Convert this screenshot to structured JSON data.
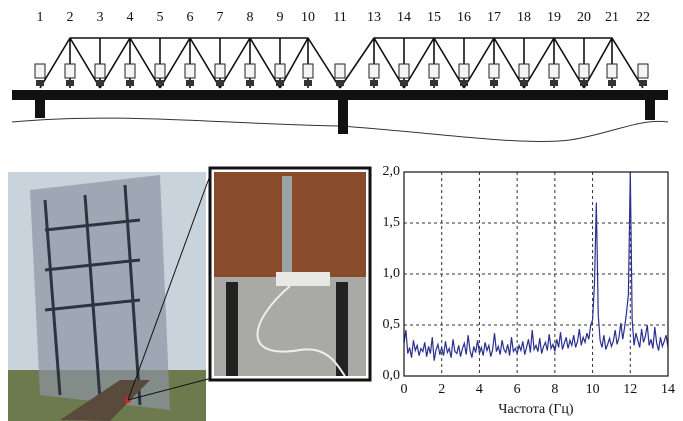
{
  "diagram": {
    "labels": [
      "1",
      "2",
      "3",
      "4",
      "5",
      "6",
      "7",
      "8",
      "9",
      "10",
      "11",
      "13",
      "14",
      "15",
      "16",
      "17",
      "18",
      "19",
      "20",
      "21",
      "22"
    ]
  },
  "chart_data": {
    "type": "line",
    "x_label": "Частота (Гц)",
    "color": "#2b2f8f",
    "grid": true,
    "xlim": [
      0,
      14
    ],
    "xticks": [
      0,
      2,
      4,
      6,
      8,
      10,
      12,
      14
    ],
    "ylim": [
      0,
      2
    ],
    "yticks": [
      {
        "value": 0,
        "label": "0,0"
      },
      {
        "value": 0.5,
        "label": "0,5"
      },
      {
        "value": 1,
        "label": "1,0"
      },
      {
        "value": 1.5,
        "label": "1,5"
      },
      {
        "value": 2,
        "label": "2,0"
      }
    ],
    "x": [
      0,
      0.1,
      0.2,
      0.3,
      0.4,
      0.5,
      0.6,
      0.7,
      0.8,
      0.9,
      1,
      1.1,
      1.2,
      1.3,
      1.4,
      1.5,
      1.6,
      1.7,
      1.8,
      1.9,
      2,
      2.1,
      2.2,
      2.3,
      2.4,
      2.5,
      2.6,
      2.7,
      2.8,
      2.9,
      3,
      3.1,
      3.2,
      3.3,
      3.4,
      3.5,
      3.6,
      3.7,
      3.8,
      3.9,
      4,
      4.1,
      4.2,
      4.3,
      4.4,
      4.5,
      4.6,
      4.7,
      4.8,
      4.9,
      5,
      5.1,
      5.2,
      5.3,
      5.4,
      5.5,
      5.6,
      5.7,
      5.8,
      5.9,
      6,
      6.1,
      6.2,
      6.3,
      6.4,
      6.5,
      6.6,
      6.7,
      6.8,
      6.9,
      7,
      7.1,
      7.2,
      7.3,
      7.4,
      7.5,
      7.6,
      7.7,
      7.8,
      7.9,
      8,
      8.1,
      8.2,
      8.3,
      8.4,
      8.5,
      8.6,
      8.7,
      8.8,
      8.9,
      9,
      9.1,
      9.2,
      9.3,
      9.4,
      9.5,
      9.6,
      9.7,
      9.8,
      9.9,
      10,
      10.1,
      10.2,
      10.3,
      10.4,
      10.5,
      10.6,
      10.7,
      10.8,
      10.9,
      11,
      11.1,
      11.2,
      11.3,
      11.4,
      11.5,
      11.6,
      11.7,
      11.8,
      11.9,
      12,
      12.1,
      12.2,
      12.3,
      12.4,
      12.5,
      12.6,
      12.7,
      12.8,
      12.9,
      13,
      13.1,
      13.2,
      13.3,
      13.4,
      13.5,
      13.6,
      13.7,
      13.8,
      13.9,
      14
    ],
    "values": [
      0.32,
      0.45,
      0.22,
      0.28,
      0.18,
      0.35,
      0.25,
      0.3,
      0.2,
      0.27,
      0.24,
      0.33,
      0.19,
      0.29,
      0.22,
      0.38,
      0.15,
      0.26,
      0.31,
      0.21,
      0.28,
      0.2,
      0.34,
      0.23,
      0.27,
      0.18,
      0.36,
      0.24,
      0.22,
      0.3,
      0.19,
      0.27,
      0.32,
      0.21,
      0.4,
      0.25,
      0.18,
      0.29,
      0.23,
      0.35,
      0.22,
      0.28,
      0.2,
      0.33,
      0.25,
      0.3,
      0.19,
      0.26,
      0.42,
      0.24,
      0.29,
      0.21,
      0.35,
      0.26,
      0.23,
      0.31,
      0.2,
      0.38,
      0.24,
      0.27,
      0.22,
      0.3,
      0.25,
      0.34,
      0.21,
      0.28,
      0.36,
      0.23,
      0.45,
      0.26,
      0.3,
      0.24,
      0.37,
      0.22,
      0.29,
      0.33,
      0.25,
      0.41,
      0.27,
      0.31,
      0.24,
      0.36,
      0.28,
      0.43,
      0.26,
      0.32,
      0.38,
      0.27,
      0.35,
      0.3,
      0.4,
      0.28,
      0.34,
      0.46,
      0.3,
      0.38,
      0.33,
      0.42,
      0.36,
      0.5,
      0.55,
      0.9,
      1.7,
      0.6,
      0.35,
      0.28,
      0.4,
      0.26,
      0.31,
      0.37,
      0.29,
      0.34,
      0.45,
      0.31,
      0.38,
      0.52,
      0.36,
      0.48,
      0.62,
      0.8,
      2.0,
      0.55,
      0.3,
      0.42,
      0.35,
      0.28,
      0.46,
      0.33,
      0.39,
      0.5,
      0.3,
      0.36,
      0.27,
      0.48,
      0.32,
      0.25,
      0.38,
      0.29,
      0.34,
      0.4,
      0.28
    ]
  }
}
